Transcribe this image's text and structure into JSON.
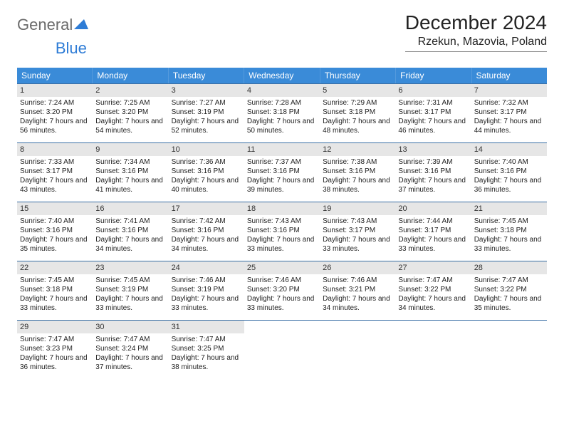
{
  "logo": {
    "text1": "General",
    "text2": "Blue",
    "accent": "#2e7cd6",
    "gray": "#6b6b6b"
  },
  "title": "December 2024",
  "location": "Rzekun, Mazovia, Poland",
  "colors": {
    "header_bg": "#3a8bd8",
    "header_text": "#ffffff",
    "row_border": "#3a6fa5",
    "daynum_bg": "#e6e6e6",
    "text": "#222222",
    "page_bg": "#ffffff"
  },
  "fonts": {
    "title_size": 28,
    "location_size": 16,
    "dow_size": 12,
    "body_size": 10
  },
  "days_of_week": [
    "Sunday",
    "Monday",
    "Tuesday",
    "Wednesday",
    "Thursday",
    "Friday",
    "Saturday"
  ],
  "weeks": [
    [
      {
        "n": "1",
        "sunrise": "7:24 AM",
        "sunset": "3:20 PM",
        "dl": "7 hours and 56 minutes."
      },
      {
        "n": "2",
        "sunrise": "7:25 AM",
        "sunset": "3:20 PM",
        "dl": "7 hours and 54 minutes."
      },
      {
        "n": "3",
        "sunrise": "7:27 AM",
        "sunset": "3:19 PM",
        "dl": "7 hours and 52 minutes."
      },
      {
        "n": "4",
        "sunrise": "7:28 AM",
        "sunset": "3:18 PM",
        "dl": "7 hours and 50 minutes."
      },
      {
        "n": "5",
        "sunrise": "7:29 AM",
        "sunset": "3:18 PM",
        "dl": "7 hours and 48 minutes."
      },
      {
        "n": "6",
        "sunrise": "7:31 AM",
        "sunset": "3:17 PM",
        "dl": "7 hours and 46 minutes."
      },
      {
        "n": "7",
        "sunrise": "7:32 AM",
        "sunset": "3:17 PM",
        "dl": "7 hours and 44 minutes."
      }
    ],
    [
      {
        "n": "8",
        "sunrise": "7:33 AM",
        "sunset": "3:17 PM",
        "dl": "7 hours and 43 minutes."
      },
      {
        "n": "9",
        "sunrise": "7:34 AM",
        "sunset": "3:16 PM",
        "dl": "7 hours and 41 minutes."
      },
      {
        "n": "10",
        "sunrise": "7:36 AM",
        "sunset": "3:16 PM",
        "dl": "7 hours and 40 minutes."
      },
      {
        "n": "11",
        "sunrise": "7:37 AM",
        "sunset": "3:16 PM",
        "dl": "7 hours and 39 minutes."
      },
      {
        "n": "12",
        "sunrise": "7:38 AM",
        "sunset": "3:16 PM",
        "dl": "7 hours and 38 minutes."
      },
      {
        "n": "13",
        "sunrise": "7:39 AM",
        "sunset": "3:16 PM",
        "dl": "7 hours and 37 minutes."
      },
      {
        "n": "14",
        "sunrise": "7:40 AM",
        "sunset": "3:16 PM",
        "dl": "7 hours and 36 minutes."
      }
    ],
    [
      {
        "n": "15",
        "sunrise": "7:40 AM",
        "sunset": "3:16 PM",
        "dl": "7 hours and 35 minutes."
      },
      {
        "n": "16",
        "sunrise": "7:41 AM",
        "sunset": "3:16 PM",
        "dl": "7 hours and 34 minutes."
      },
      {
        "n": "17",
        "sunrise": "7:42 AM",
        "sunset": "3:16 PM",
        "dl": "7 hours and 34 minutes."
      },
      {
        "n": "18",
        "sunrise": "7:43 AM",
        "sunset": "3:16 PM",
        "dl": "7 hours and 33 minutes."
      },
      {
        "n": "19",
        "sunrise": "7:43 AM",
        "sunset": "3:17 PM",
        "dl": "7 hours and 33 minutes."
      },
      {
        "n": "20",
        "sunrise": "7:44 AM",
        "sunset": "3:17 PM",
        "dl": "7 hours and 33 minutes."
      },
      {
        "n": "21",
        "sunrise": "7:45 AM",
        "sunset": "3:18 PM",
        "dl": "7 hours and 33 minutes."
      }
    ],
    [
      {
        "n": "22",
        "sunrise": "7:45 AM",
        "sunset": "3:18 PM",
        "dl": "7 hours and 33 minutes."
      },
      {
        "n": "23",
        "sunrise": "7:45 AM",
        "sunset": "3:19 PM",
        "dl": "7 hours and 33 minutes."
      },
      {
        "n": "24",
        "sunrise": "7:46 AM",
        "sunset": "3:19 PM",
        "dl": "7 hours and 33 minutes."
      },
      {
        "n": "25",
        "sunrise": "7:46 AM",
        "sunset": "3:20 PM",
        "dl": "7 hours and 33 minutes."
      },
      {
        "n": "26",
        "sunrise": "7:46 AM",
        "sunset": "3:21 PM",
        "dl": "7 hours and 34 minutes."
      },
      {
        "n": "27",
        "sunrise": "7:47 AM",
        "sunset": "3:22 PM",
        "dl": "7 hours and 34 minutes."
      },
      {
        "n": "28",
        "sunrise": "7:47 AM",
        "sunset": "3:22 PM",
        "dl": "7 hours and 35 minutes."
      }
    ],
    [
      {
        "n": "29",
        "sunrise": "7:47 AM",
        "sunset": "3:23 PM",
        "dl": "7 hours and 36 minutes."
      },
      {
        "n": "30",
        "sunrise": "7:47 AM",
        "sunset": "3:24 PM",
        "dl": "7 hours and 37 minutes."
      },
      {
        "n": "31",
        "sunrise": "7:47 AM",
        "sunset": "3:25 PM",
        "dl": "7 hours and 38 minutes."
      },
      {
        "empty": true
      },
      {
        "empty": true
      },
      {
        "empty": true
      },
      {
        "empty": true
      }
    ]
  ],
  "labels": {
    "sunrise": "Sunrise:",
    "sunset": "Sunset:",
    "daylight": "Daylight:"
  }
}
